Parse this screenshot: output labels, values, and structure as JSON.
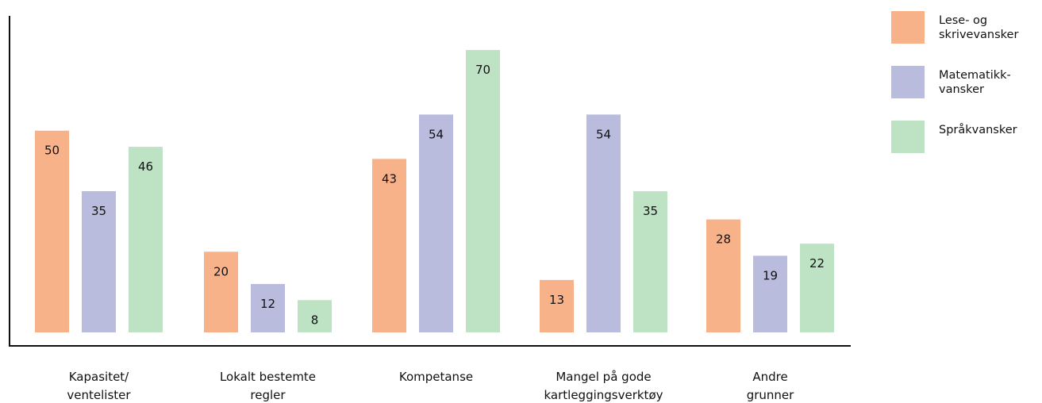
{
  "chart_data": {
    "type": "bar",
    "categories": [
      "Kapasitet/\nventelister",
      "Lokalt bestemte\nregler",
      "Kompetanse",
      "Mangel på gode\nkartleggingsverktøy",
      "Andre\ngrunner"
    ],
    "series": [
      {
        "name": "Lese- og skrivevansker",
        "legend_label": "Lese- og\nskrivevansker",
        "color": "#F8B28A",
        "values": [
          50,
          20,
          43,
          13,
          28
        ]
      },
      {
        "name": "Matematikkvansker",
        "legend_label": "Matematikk-\nvansker",
        "color": "#BABCDE",
        "values": [
          35,
          12,
          54,
          54,
          19
        ]
      },
      {
        "name": "Språkvansker",
        "legend_label": "Språkvansker",
        "color": "#BEE3C4",
        "values": [
          46,
          8,
          70,
          35,
          22
        ]
      }
    ],
    "ylim": [
      0,
      70
    ],
    "grid": false,
    "legend_position": "right",
    "axis_color": "#111111",
    "title": "",
    "xlabel": "",
    "ylabel": ""
  }
}
